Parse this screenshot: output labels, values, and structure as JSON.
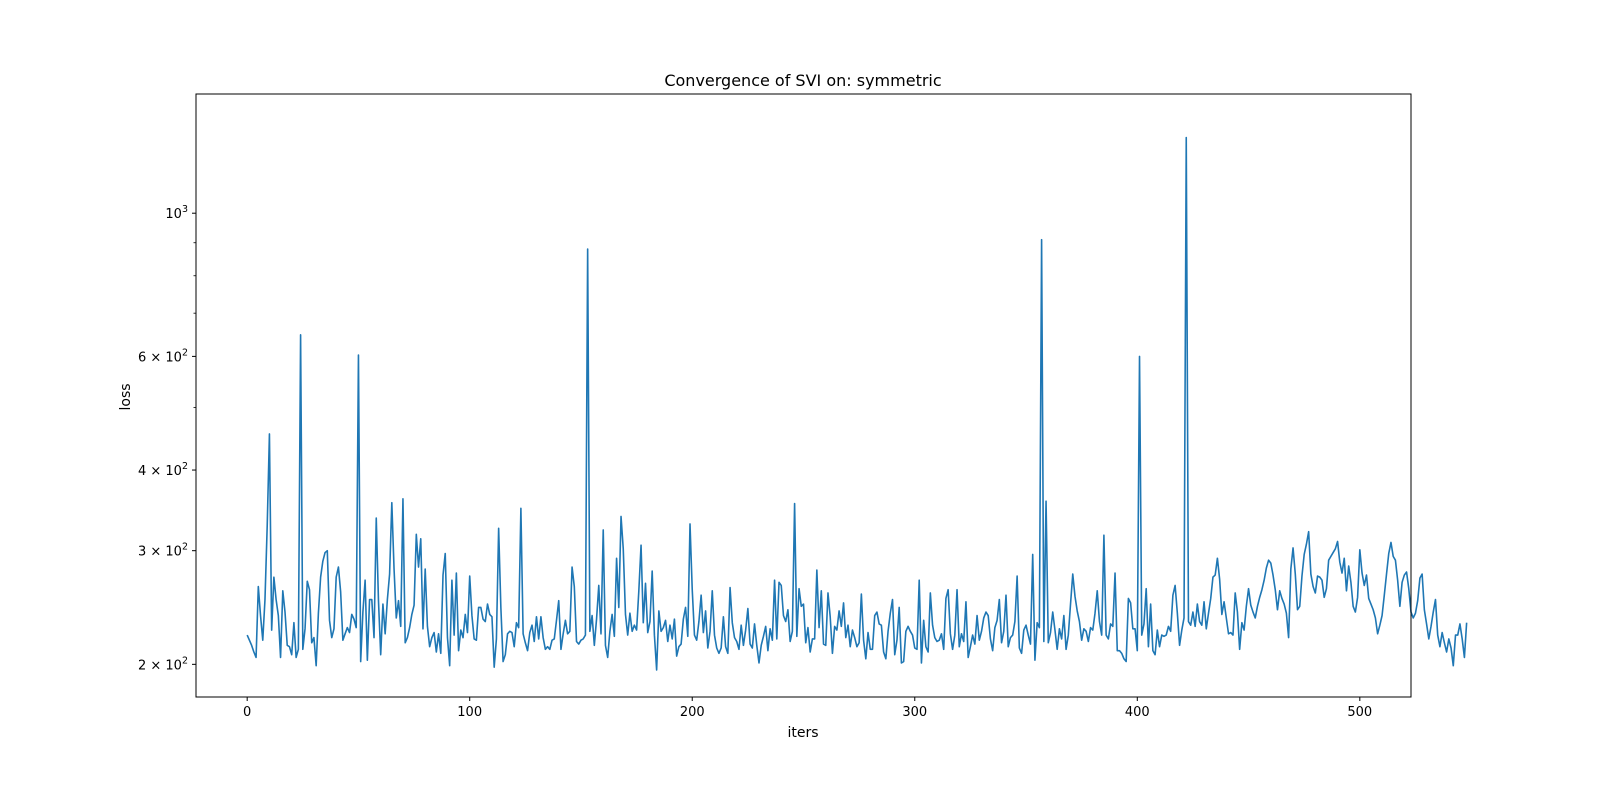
{
  "chart_data": {
    "type": "line",
    "title": "Convergence of SVI on: symmetric",
    "xlabel": "iters",
    "ylabel": "loss",
    "xlim": [
      -23,
      523
    ],
    "ylim": [
      178,
      1530
    ],
    "yscale": "log",
    "grid": false,
    "x_ticks": [
      0,
      100,
      200,
      300,
      400,
      500
    ],
    "y_ticks": [
      {
        "value": 200,
        "mantissa": "2",
        "exponent": "2"
      },
      {
        "value": 300,
        "mantissa": "3",
        "exponent": "2"
      },
      {
        "value": 400,
        "mantissa": "4",
        "exponent": "2"
      },
      {
        "value": 600,
        "mantissa": "6",
        "exponent": "2"
      },
      {
        "value": 1000,
        "mantissa": "",
        "exponent": "3"
      }
    ],
    "y_minor_ticks": [
      500,
      700,
      800,
      900
    ],
    "series": [
      {
        "color": "#1f77b4",
        "x_start": 0,
        "x_step": 1,
        "values": [
          222,
          218,
          214,
          209,
          205,
          264,
          238,
          218,
          252,
          328,
          455,
          226,
          273,
          252,
          238,
          205,
          260,
          241,
          214,
          213,
          207,
          232,
          205,
          211,
          648,
          211,
          227,
          269,
          261,
          216,
          220,
          199,
          240,
          273,
          289,
          298,
          300,
          234,
          220,
          227,
          273,
          283,
          259,
          218,
          223,
          228,
          224,
          239,
          235,
          228,
          603,
          202,
          241,
          270,
          203,
          252,
          252,
          220,
          337,
          251,
          207,
          248,
          223,
          252,
          276,
          356,
          281,
          236,
          251,
          229,
          361,
          216,
          220,
          228,
          239,
          247,
          318,
          283,
          313,
          227,
          281,
          229,
          213,
          220,
          224,
          209,
          223,
          208,
          275,
          297,
          220,
          199,
          270,
          222,
          277,
          210,
          226,
          220,
          239,
          224,
          274,
          238,
          219,
          218,
          245,
          245,
          235,
          233,
          248,
          239,
          237,
          198,
          219,
          325,
          245,
          202,
          207,
          223,
          225,
          224,
          213,
          232,
          228,
          349,
          223,
          216,
          210,
          224,
          230,
          217,
          237,
          219,
          237,
          220,
          211,
          213,
          211,
          218,
          219,
          234,
          251,
          211,
          223,
          234,
          223,
          225,
          283,
          264,
          217,
          215,
          218,
          219,
          222,
          880,
          225,
          238,
          214,
          235,
          265,
          223,
          323,
          214,
          205,
          225,
          239,
          221,
          292,
          245,
          339,
          302,
          239,
          222,
          240,
          225,
          230,
          226,
          260,
          306,
          232,
          267,
          224,
          233,
          279,
          222,
          196,
          242,
          225,
          228,
          234,
          217,
          230,
          219,
          235,
          206,
          213,
          215,
          235,
          245,
          221,
          330,
          261,
          222,
          218,
          233,
          256,
          224,
          242,
          212,
          225,
          260,
          222,
          212,
          208,
          212,
          237,
          213,
          208,
          263,
          232,
          220,
          217,
          211,
          230,
          214,
          226,
          244,
          215,
          212,
          231,
          214,
          201,
          214,
          221,
          229,
          210,
          227,
          218,
          270,
          219,
          268,
          265,
          238,
          233,
          243,
          217,
          225,
          355,
          221,
          262,
          246,
          248,
          216,
          228,
          209,
          219,
          219,
          280,
          228,
          260,
          215,
          214,
          258,
          237,
          208,
          229,
          226,
          242,
          229,
          249,
          220,
          230,
          213,
          226,
          220,
          213,
          216,
          257,
          218,
          204,
          224,
          211,
          211,
          238,
          241,
          231,
          230,
          209,
          204,
          225,
          240,
          252,
          207,
          218,
          245,
          201,
          202,
          225,
          229,
          225,
          222,
          212,
          211,
          270,
          201,
          234,
          213,
          209,
          258,
          230,
          220,
          217,
          218,
          223,
          211,
          253,
          261,
          223,
          211,
          222,
          261,
          213,
          223,
          217,
          250,
          205,
          213,
          222,
          215,
          238,
          218,
          225,
          236,
          241,
          238,
          219,
          210,
          228,
          234,
          252,
          216,
          225,
          256,
          213,
          220,
          222,
          233,
          274,
          212,
          208,
          226,
          230,
          222,
          215,
          296,
          203,
          232,
          228,
          910,
          217,
          358,
          216,
          224,
          241,
          226,
          211,
          227,
          219,
          238,
          211,
          222,
          248,
          276,
          255,
          242,
          233,
          218,
          227,
          225,
          217,
          228,
          226,
          240,
          260,
          233,
          222,
          317,
          222,
          219,
          231,
          229,
          277,
          210,
          210,
          208,
          204,
          202,
          253,
          249,
          227,
          227,
          210,
          600,
          222,
          231,
          262,
          213,
          248,
          210,
          207,
          226,
          213,
          222,
          221,
          222,
          229,
          225,
          256,
          265,
          240,
          214,
          226,
          236,
          1310,
          233,
          230,
          241,
          229,
          248,
          233,
          230,
          250,
          227,
          240,
          253,
          273,
          275,
          292,
          271,
          239,
          250,
          236,
          223,
          224,
          222,
          258,
          241,
          211,
          232,
          226,
          246,
          262,
          247,
          241,
          236,
          246,
          254,
          261,
          270,
          282,
          290,
          287,
          275,
          261,
          243,
          260,
          253,
          248,
          240,
          220,
          281,
          303,
          276,
          243,
          246,
          274,
          296,
          307,
          321,
          276,
          264,
          258,
          274,
          273,
          270,
          254,
          262,
          290,
          294,
          298,
          302,
          310,
          288,
          277,
          292,
          260,
          284,
          268,
          246,
          241,
          254,
          301,
          277,
          265,
          275,
          253,
          248,
          243,
          236,
          223,
          230,
          238,
          256,
          276,
          297,
          309,
          294,
          290,
          270,
          246,
          268,
          275,
          278,
          262,
          241,
          236,
          240,
          251,
          272,
          276,
          243,
          231,
          219,
          229,
          241,
          252,
          222,
          213,
          224,
          216,
          209,
          219,
          212,
          199,
          222,
          222,
          231,
          219,
          205,
          232
        ]
      }
    ]
  }
}
